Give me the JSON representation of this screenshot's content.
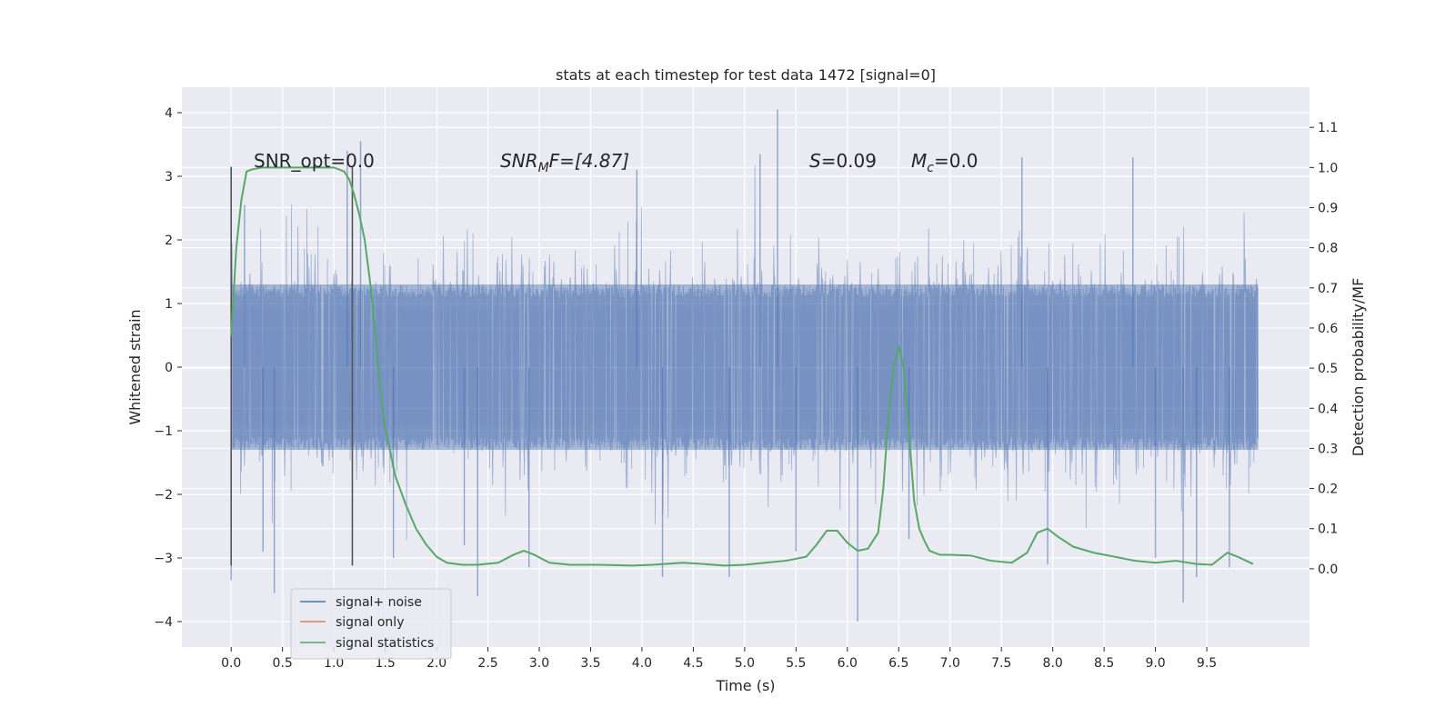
{
  "chart_data": {
    "type": "line",
    "title": "stats at each timestep for test data 1472 [signal=0]",
    "xlabel": "Time (s)",
    "ylabel": "Whitened strain",
    "y2label": "Detection probability/MF",
    "xlim": [
      -0.48,
      10.5
    ],
    "ylim": [
      -4.4,
      4.4
    ],
    "y2lim": [
      -0.195,
      1.2
    ],
    "xticks": [
      "0.0",
      "0.5",
      "1.0",
      "1.5",
      "2.0",
      "2.5",
      "3.0",
      "3.5",
      "4.0",
      "4.5",
      "5.0",
      "5.5",
      "6.0",
      "6.5",
      "7.0",
      "7.5",
      "8.0",
      "8.5",
      "9.0",
      "9.5"
    ],
    "yticks": [
      "4",
      "3",
      "2",
      "1",
      "0",
      "−1",
      "−2",
      "−3",
      "−4"
    ],
    "y2ticks": [
      "1.1",
      "1.0",
      "0.9",
      "0.8",
      "0.7",
      "0.6",
      "0.5",
      "0.4",
      "0.3",
      "0.2",
      "0.1",
      "0.0"
    ],
    "grid": true,
    "legend_position": "lower-left",
    "background": "#eaeaf2",
    "annotations": {
      "snr_opt": "SNR_opt=0.0",
      "snr_mf_sym": "SNR",
      "snr_mf_sub": "M",
      "snr_mf_rest": "F=[4.87]",
      "s_sym": "S",
      "s_val": "=0.09",
      "mc_sym": "M",
      "mc_sub": "c",
      "mc_val": "=0.0"
    },
    "vertical_markers": [
      0.0,
      1.18
    ],
    "series": [
      {
        "name": "signal+ noise",
        "color": "#4c72b0",
        "axis": "left",
        "x_range": [
          0.0,
          10.0
        ],
        "typical_envelope": [
          -1.3,
          1.3
        ],
        "spikes": [
          [
            0.0,
            -3.35
          ],
          [
            0.13,
            2.55
          ],
          [
            0.31,
            -2.9
          ],
          [
            0.42,
            -3.55
          ],
          [
            1.13,
            3.4
          ],
          [
            1.26,
            3.55
          ],
          [
            1.58,
            -3.0
          ],
          [
            2.27,
            -2.8
          ],
          [
            2.4,
            -3.6
          ],
          [
            2.9,
            -3.15
          ],
          [
            3.95,
            3.1
          ],
          [
            4.2,
            -3.3
          ],
          [
            4.85,
            -3.3
          ],
          [
            5.15,
            3.35
          ],
          [
            5.32,
            4.05
          ],
          [
            5.5,
            -2.9
          ],
          [
            6.1,
            -4.0
          ],
          [
            6.6,
            -2.7
          ],
          [
            7.7,
            3.3
          ],
          [
            7.95,
            -3.1
          ],
          [
            8.78,
            3.3
          ],
          [
            9.0,
            -3.0
          ],
          [
            9.27,
            -3.7
          ],
          [
            9.4,
            -3.3
          ],
          [
            9.72,
            -3.15
          ]
        ]
      },
      {
        "name": "signal only",
        "color": "#dd8452",
        "axis": "left",
        "x": [],
        "y": []
      },
      {
        "name": "signal statistics",
        "color": "#55a868",
        "axis": "right",
        "x": [
          0.0,
          0.05,
          0.1,
          0.15,
          0.2,
          0.3,
          0.5,
          0.8,
          1.0,
          1.1,
          1.15,
          1.2,
          1.25,
          1.3,
          1.35,
          1.4,
          1.45,
          1.5,
          1.6,
          1.7,
          1.8,
          1.9,
          2.0,
          2.1,
          2.25,
          2.4,
          2.6,
          2.75,
          2.85,
          2.95,
          3.1,
          3.3,
          3.6,
          3.9,
          4.1,
          4.4,
          4.6,
          4.8,
          5.0,
          5.2,
          5.4,
          5.6,
          5.7,
          5.8,
          5.9,
          6.0,
          6.1,
          6.2,
          6.3,
          6.35,
          6.4,
          6.45,
          6.5,
          6.55,
          6.6,
          6.65,
          6.7,
          6.75,
          6.8,
          6.9,
          7.0,
          7.2,
          7.4,
          7.6,
          7.75,
          7.85,
          7.95,
          8.05,
          8.2,
          8.4,
          8.6,
          8.8,
          9.0,
          9.2,
          9.4,
          9.55,
          9.7,
          9.8,
          9.95
        ],
        "y": [
          0.58,
          0.8,
          0.92,
          0.99,
          0.995,
          1.0,
          1.0,
          1.0,
          1.0,
          0.99,
          0.97,
          0.93,
          0.88,
          0.82,
          0.72,
          0.6,
          0.45,
          0.35,
          0.23,
          0.16,
          0.1,
          0.06,
          0.03,
          0.015,
          0.01,
          0.01,
          0.015,
          0.035,
          0.045,
          0.035,
          0.015,
          0.01,
          0.01,
          0.008,
          0.01,
          0.015,
          0.012,
          0.008,
          0.01,
          0.015,
          0.02,
          0.03,
          0.06,
          0.095,
          0.095,
          0.065,
          0.045,
          0.05,
          0.09,
          0.2,
          0.38,
          0.5,
          0.555,
          0.5,
          0.34,
          0.17,
          0.1,
          0.07,
          0.045,
          0.035,
          0.035,
          0.033,
          0.02,
          0.015,
          0.04,
          0.09,
          0.1,
          0.08,
          0.055,
          0.04,
          0.03,
          0.02,
          0.015,
          0.02,
          0.012,
          0.01,
          0.04,
          0.03,
          0.012
        ]
      }
    ]
  }
}
